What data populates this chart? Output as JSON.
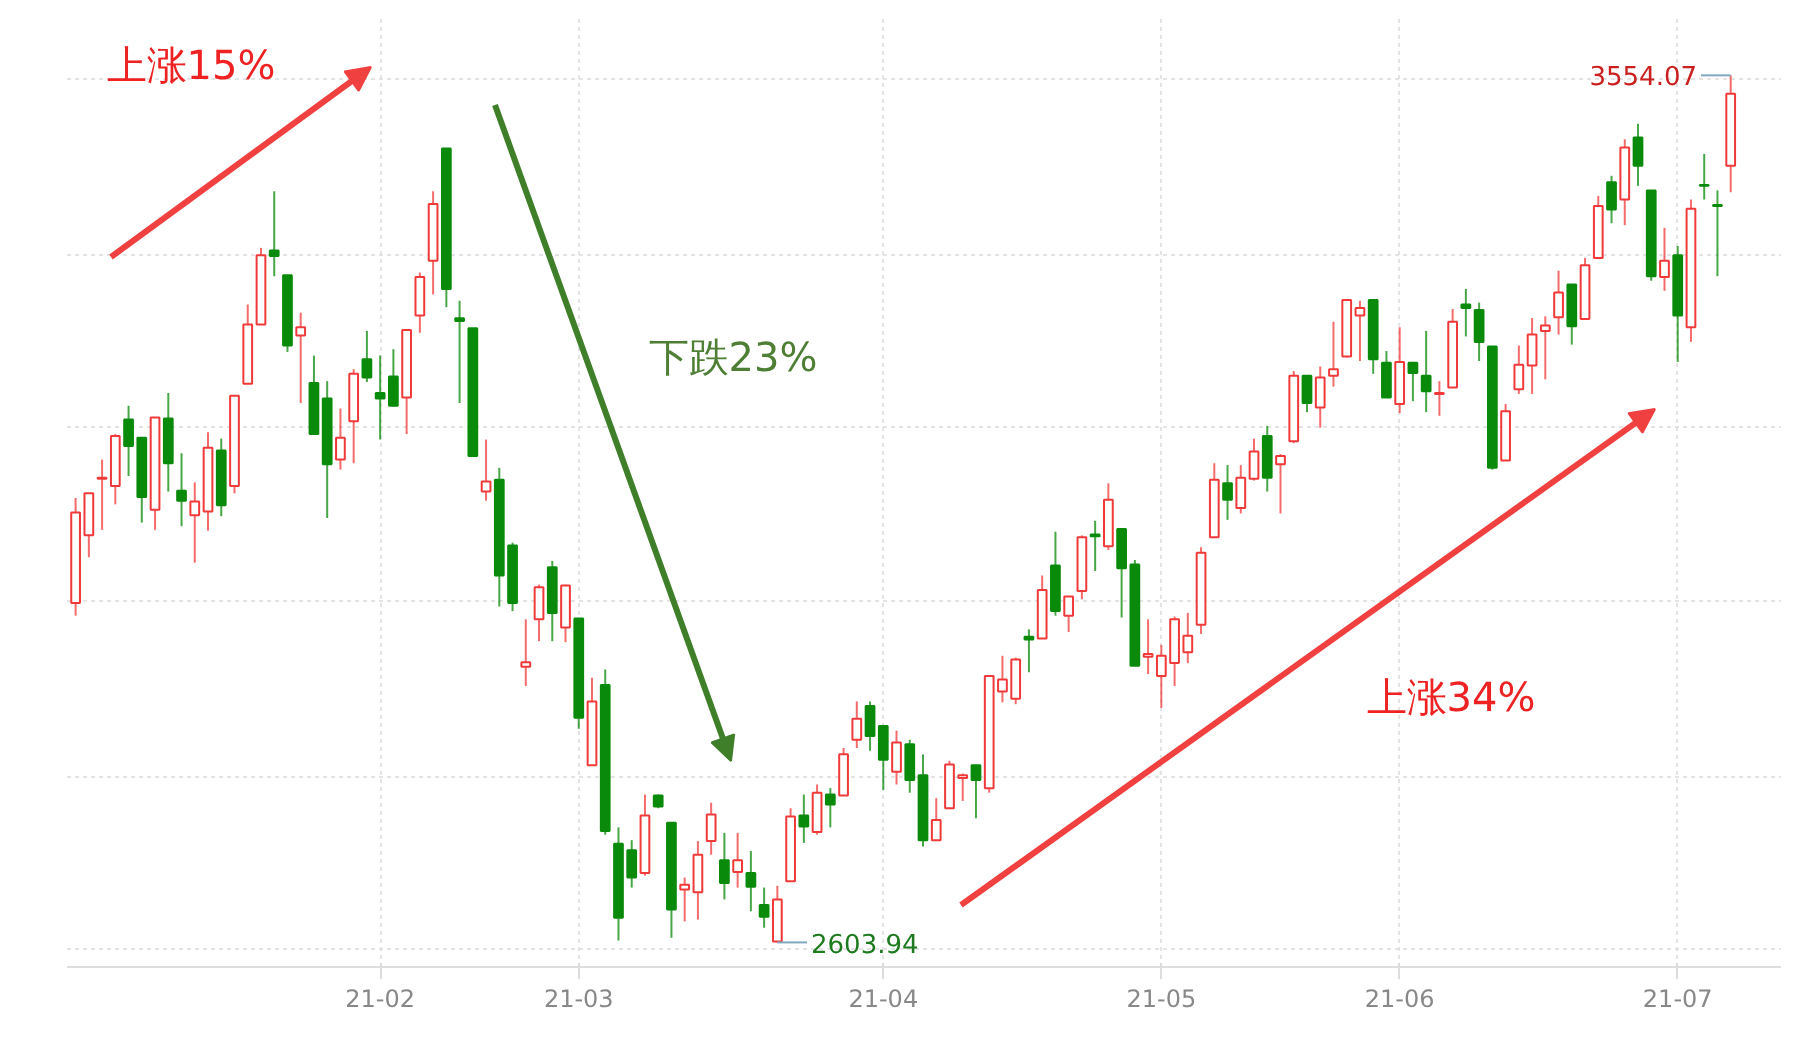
{
  "chart_data": {
    "type": "candlestick",
    "categories": [
      null,
      null,
      null,
      null,
      null,
      null,
      null,
      null,
      null,
      null,
      null,
      null,
      null,
      null,
      null,
      null,
      null,
      null,
      null,
      null,
      null,
      null,
      null,
      "21-02",
      null,
      null,
      null,
      null,
      null,
      null,
      null,
      null,
      null,
      null,
      null,
      null,
      null,
      null,
      "21-03",
      null,
      null,
      null,
      null,
      null,
      null,
      null,
      null,
      null,
      null,
      null,
      null,
      null,
      null,
      null,
      null,
      null,
      null,
      null,
      null,
      null,
      null,
      "21-04",
      null,
      null,
      null,
      null,
      null,
      null,
      null,
      null,
      null,
      null,
      null,
      null,
      null,
      null,
      null,
      null,
      null,
      null,
      null,
      null,
      "21-05",
      null,
      null,
      null,
      null,
      null,
      null,
      null,
      null,
      null,
      null,
      null,
      null,
      null,
      null,
      null,
      null,
      null,
      "21-06",
      null,
      null,
      null,
      null,
      null,
      null,
      null,
      null,
      null,
      null,
      null,
      null,
      null,
      null,
      null,
      null,
      null,
      null,
      null,
      null,
      "21-07",
      null,
      null,
      null,
      null
    ],
    "ohlc": [
      [
        2976,
        3091,
        2962,
        3075
      ],
      [
        3050,
        3096,
        3026,
        3096
      ],
      [
        3112,
        3133,
        3056,
        3113
      ],
      [
        3104,
        3161,
        3084,
        3159
      ],
      [
        3177,
        3192,
        3115,
        3148
      ],
      [
        3157,
        3157,
        3064,
        3092
      ],
      [
        3078,
        3179,
        3056,
        3179
      ],
      [
        3178,
        3206,
        3098,
        3129
      ],
      [
        3099,
        3140,
        3060,
        3088
      ],
      [
        3072,
        3108,
        3020,
        3087
      ],
      [
        3076,
        3163,
        3055,
        3146
      ],
      [
        3143,
        3156,
        3071,
        3083
      ],
      [
        3104,
        3203,
        3096,
        3203
      ],
      [
        3216,
        3303,
        3216,
        3281
      ],
      [
        3281,
        3365,
        3281,
        3357
      ],
      [
        3362,
        3427,
        3334,
        3356
      ],
      [
        3335,
        3335,
        3251,
        3258
      ],
      [
        3269,
        3294,
        3195,
        3278
      ],
      [
        3217,
        3247,
        3161,
        3161
      ],
      [
        3200,
        3219,
        3069,
        3128
      ],
      [
        3133,
        3189,
        3122,
        3157
      ],
      [
        3175,
        3232,
        3129,
        3227
      ],
      [
        3243,
        3274,
        3218,
        3223
      ],
      [
        3206,
        3247,
        3155,
        3200
      ],
      [
        3224,
        3254,
        3191,
        3192
      ],
      [
        3201,
        3275,
        3161,
        3275
      ],
      [
        3291,
        3338,
        3272,
        3333
      ],
      [
        3351,
        3427,
        3314,
        3413
      ],
      [
        3474,
        3474,
        3300,
        3320
      ],
      [
        3288,
        3307,
        3195,
        3285
      ],
      [
        3277,
        3277,
        3137,
        3137
      ],
      [
        3098,
        3155,
        3088,
        3109
      ],
      [
        3111,
        3124,
        2972,
        3006
      ],
      [
        3039,
        3042,
        2967,
        2976
      ],
      [
        2906,
        2958,
        2885,
        2911
      ],
      [
        2958,
        2996,
        2934,
        2993
      ],
      [
        3015,
        3022,
        2934,
        2965
      ],
      [
        2949,
        2996,
        2933,
        2995
      ],
      [
        2959,
        2959,
        2838,
        2850
      ],
      [
        2798,
        2894,
        2798,
        2868
      ],
      [
        2886,
        2903,
        2722,
        2726
      ],
      [
        2712,
        2730,
        2606,
        2631
      ],
      [
        2705,
        2716,
        2664,
        2675
      ],
      [
        2680,
        2766,
        2677,
        2743
      ],
      [
        2765,
        2766,
        2751,
        2753
      ],
      [
        2735,
        2735,
        2609,
        2640
      ],
      [
        2662,
        2675,
        2627,
        2667
      ],
      [
        2659,
        2715,
        2629,
        2700
      ],
      [
        2715,
        2757,
        2700,
        2744
      ],
      [
        2694,
        2724,
        2651,
        2669
      ],
      [
        2681,
        2724,
        2664,
        2694
      ],
      [
        2680,
        2704,
        2638,
        2665
      ],
      [
        2645,
        2664,
        2620,
        2632
      ],
      [
        2605,
        2666,
        2603.94,
        2651
      ],
      [
        2671,
        2751,
        2671,
        2742
      ],
      [
        2743,
        2766,
        2713,
        2731
      ],
      [
        2725,
        2777,
        2722,
        2768
      ],
      [
        2766,
        2773,
        2730,
        2755
      ],
      [
        2765,
        2817,
        2765,
        2810
      ],
      [
        2826,
        2868,
        2817,
        2849
      ],
      [
        2863,
        2868,
        2814,
        2830
      ],
      [
        2841,
        2841,
        2771,
        2804
      ],
      [
        2791,
        2836,
        2777,
        2823
      ],
      [
        2821,
        2826,
        2768,
        2782
      ],
      [
        2787,
        2810,
        2709,
        2716
      ],
      [
        2716,
        2762,
        2716,
        2738
      ],
      [
        2751,
        2803,
        2750,
        2799
      ],
      [
        2784,
        2789,
        2759,
        2787
      ],
      [
        2798,
        2798,
        2740,
        2782
      ],
      [
        2773,
        2896,
        2768,
        2896
      ],
      [
        2879,
        2918,
        2867,
        2892
      ],
      [
        2871,
        2916,
        2865,
        2914
      ],
      [
        2939,
        2947,
        2900,
        2936
      ],
      [
        2937,
        3006,
        2937,
        2990
      ],
      [
        3017,
        3054,
        2962,
        2967
      ],
      [
        2962,
        2983,
        2944,
        2983
      ],
      [
        2989,
        3050,
        2980,
        3048
      ],
      [
        3051,
        3066,
        3011,
        3049
      ],
      [
        3038,
        3107,
        3034,
        3089
      ],
      [
        3057,
        3057,
        2960,
        3014
      ],
      [
        3018,
        3023,
        2907,
        2907
      ],
      [
        2917,
        2958,
        2898,
        2920
      ],
      [
        2896,
        2930,
        2861,
        2918
      ],
      [
        2910,
        2961,
        2885,
        2958
      ],
      [
        2922,
        2965,
        2910,
        2940
      ],
      [
        2952,
        3037,
        2942,
        3031
      ],
      [
        3048,
        3129,
        3048,
        3111
      ],
      [
        3107,
        3127,
        3067,
        3089
      ],
      [
        3080,
        3127,
        3074,
        3113
      ],
      [
        3112,
        3156,
        3110,
        3142
      ],
      [
        3159,
        3170,
        3098,
        3113
      ],
      [
        3128,
        3139,
        3074,
        3137
      ],
      [
        3153,
        3230,
        3151,
        3225
      ],
      [
        3225,
        3225,
        3185,
        3195
      ],
      [
        3190,
        3235,
        3168,
        3223
      ],
      [
        3225,
        3284,
        3213,
        3232
      ],
      [
        3246,
        3308,
        3245,
        3308
      ],
      [
        3291,
        3307,
        3241,
        3299
      ],
      [
        3308,
        3308,
        3227,
        3243
      ],
      [
        3239,
        3252,
        3201,
        3201
      ],
      [
        3194,
        3278,
        3184,
        3240
      ],
      [
        3239,
        3240,
        3197,
        3228
      ],
      [
        3225,
        3274,
        3185,
        3208
      ],
      [
        3205,
        3219,
        3181,
        3206
      ],
      [
        3212,
        3298,
        3212,
        3284
      ],
      [
        3303,
        3320,
        3268,
        3299
      ],
      [
        3297,
        3305,
        3241,
        3262
      ],
      [
        3257,
        3257,
        3122,
        3124
      ],
      [
        3132,
        3194,
        3132,
        3186
      ],
      [
        3210,
        3258,
        3205,
        3237
      ],
      [
        3236,
        3288,
        3205,
        3270
      ],
      [
        3274,
        3290,
        3221,
        3280
      ],
      [
        3289,
        3340,
        3270,
        3316
      ],
      [
        3325,
        3325,
        3259,
        3279
      ],
      [
        3287,
        3354,
        3287,
        3346
      ],
      [
        3354,
        3422,
        3353,
        3411
      ],
      [
        3437,
        3444,
        3392,
        3407
      ],
      [
        3418,
        3484,
        3390,
        3475
      ],
      [
        3486,
        3501,
        3433,
        3455
      ],
      [
        3428,
        3428,
        3329,
        3334
      ],
      [
        3333,
        3387,
        3318,
        3351
      ],
      [
        3357,
        3367,
        3240,
        3291
      ],
      [
        3278,
        3418,
        3262,
        3408
      ],
      [
        3434,
        3468,
        3418,
        3433
      ],
      [
        3412,
        3428,
        3334,
        3411
      ],
      [
        3455,
        3554.07,
        3426,
        3534
      ]
    ],
    "ylim": [
      2577,
      3618
    ],
    "yticks": [
      {
        "value": 2596,
        "label": null
      },
      {
        "value": 2786,
        "label": null
      },
      {
        "value": 2977,
        "label": null
      },
      {
        "value": 3168,
        "label": null
      },
      {
        "value": 3358,
        "label": null
      },
      {
        "value": 3549,
        "label": null
      }
    ],
    "tick_labels": "x",
    "grid": true,
    "annotations": [
      "上涨15%",
      "下跌23%",
      "上涨34%",
      "3554.07",
      "2603.94"
    ]
  }
}
